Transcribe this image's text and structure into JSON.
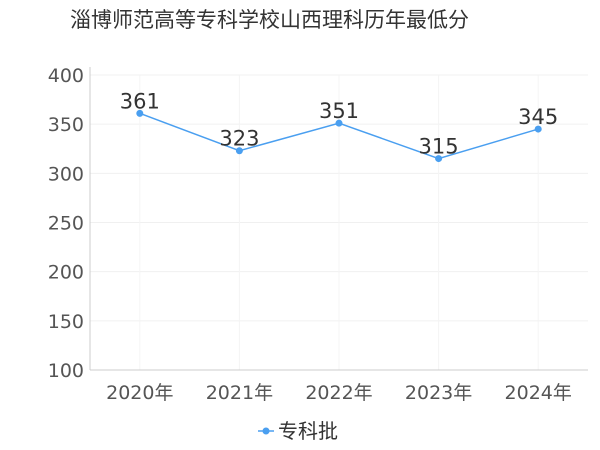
{
  "chart_data": {
    "type": "line",
    "title": "淄博师范高等专科学校山西理科历年最低分",
    "xlabel": "",
    "ylabel": "",
    "categories": [
      "2020年",
      "2021年",
      "2022年",
      "2023年",
      "2024年"
    ],
    "series": [
      {
        "name": "专科批",
        "values": [
          361,
          323,
          351,
          315,
          345
        ],
        "color": "#4a9ff0"
      }
    ],
    "ylim": [
      100,
      400
    ],
    "yticks": [
      100,
      150,
      200,
      250,
      300,
      350,
      400
    ],
    "grid": true,
    "legend": "bottom-center",
    "data_labels": true
  }
}
